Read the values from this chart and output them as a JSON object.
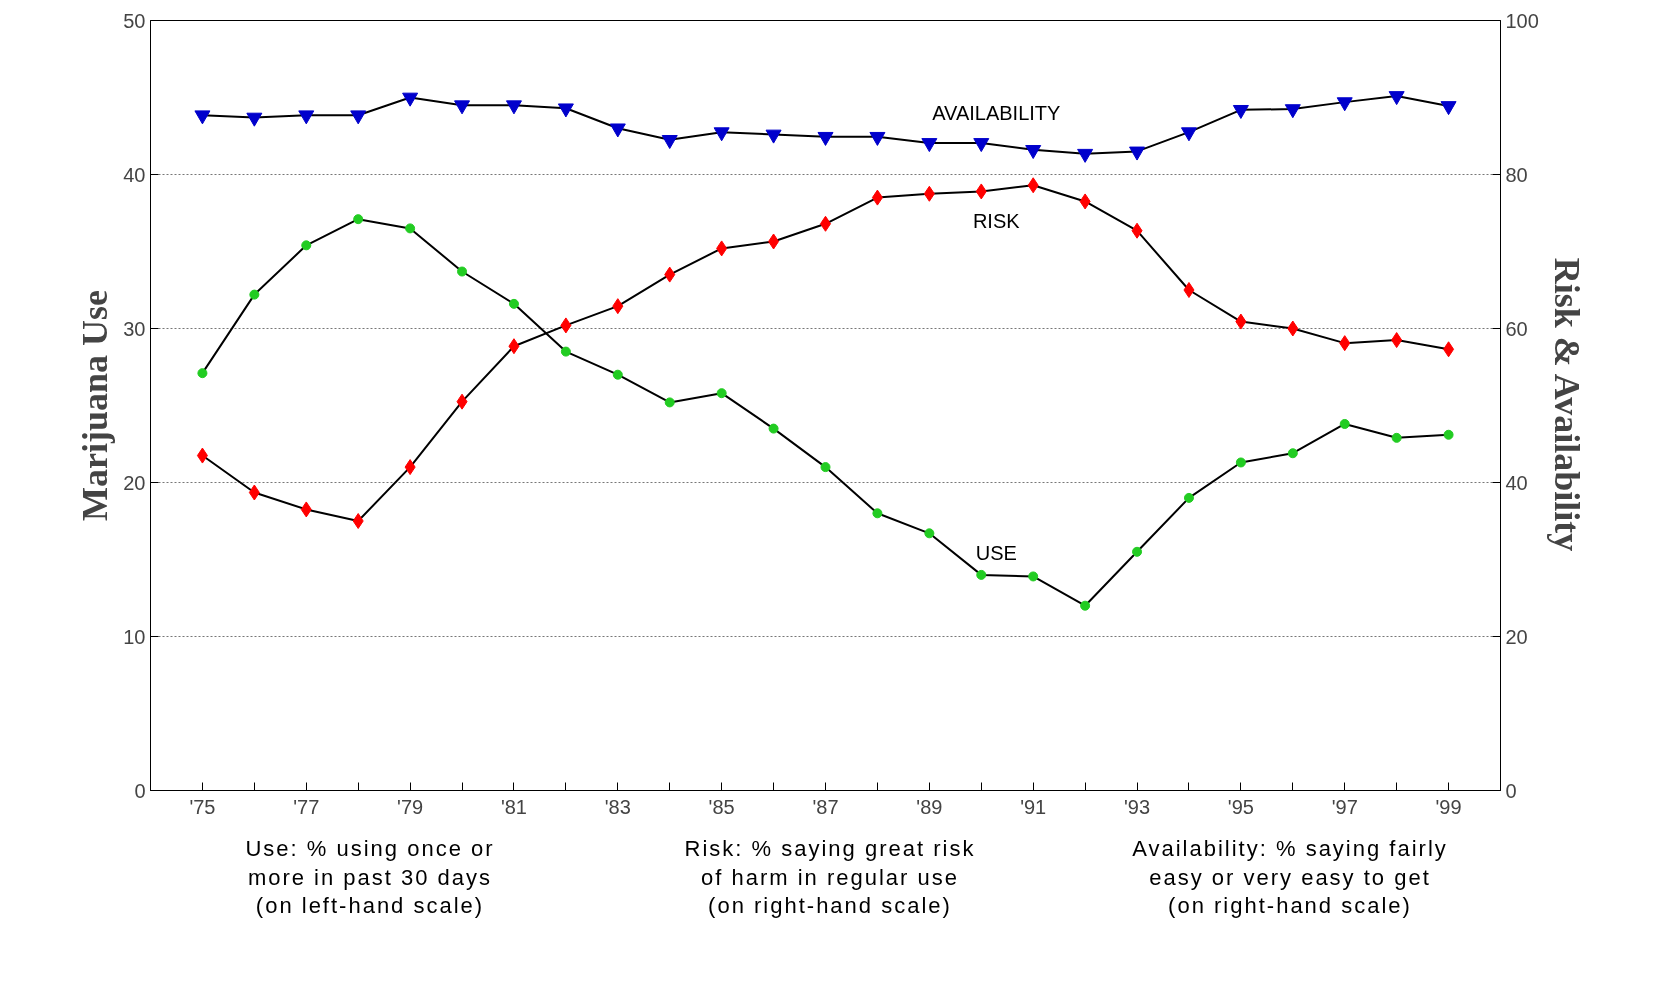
{
  "chart_data": {
    "type": "line",
    "x": [
      1975,
      1976,
      1977,
      1978,
      1979,
      1980,
      1981,
      1982,
      1983,
      1984,
      1985,
      1986,
      1987,
      1988,
      1989,
      1990,
      1991,
      1992,
      1993,
      1994,
      1995,
      1996,
      1997,
      1998,
      1999
    ],
    "series": [
      {
        "name": "USE",
        "color": "#22cc22",
        "marker": "circle",
        "values": [
          27.1,
          32.2,
          35.4,
          37.1,
          36.5,
          33.7,
          31.6,
          28.5,
          27.0,
          25.2,
          25.8,
          23.5,
          21.0,
          18.0,
          16.7,
          14.0,
          13.9,
          12.0,
          15.5,
          19.0,
          21.3,
          21.9,
          23.8,
          22.9,
          23.1
        ]
      },
      {
        "name": "RISK",
        "color": "#ff0000",
        "marker": "diamond",
        "axis": "y2",
        "values": [
          43.5,
          38.7,
          36.5,
          35.0,
          42.0,
          50.5,
          57.7,
          60.4,
          62.9,
          67.0,
          70.4,
          71.3,
          73.6,
          77.0,
          77.5,
          77.8,
          78.6,
          76.5,
          72.7,
          65.0,
          60.9,
          60.0,
          58.1,
          58.5,
          57.3
        ]
      },
      {
        "name": "AVAILABILITY",
        "color": "#0000cc",
        "marker": "triangle",
        "axis": "y2",
        "values": [
          87.7,
          87.4,
          87.7,
          87.7,
          90.0,
          89.0,
          89.0,
          88.6,
          86.0,
          84.5,
          85.5,
          85.2,
          84.9,
          84.9,
          84.1,
          84.1,
          83.2,
          82.7,
          83.0,
          85.5,
          88.4,
          88.5,
          89.4,
          90.2,
          88.9
        ]
      }
    ],
    "ylabel": "Marijuana Use",
    "y2label": "Risk & Availability",
    "xlim": [
      1974,
      2000
    ],
    "xticks": [
      {
        "value": 1975,
        "label": "'75"
      },
      {
        "value": 1976,
        "label": null
      },
      {
        "value": 1977,
        "label": "'77"
      },
      {
        "value": 1978,
        "label": null
      },
      {
        "value": 1979,
        "label": "'79"
      },
      {
        "value": 1980,
        "label": null
      },
      {
        "value": 1981,
        "label": "'81"
      },
      {
        "value": 1982,
        "label": null
      },
      {
        "value": 1983,
        "label": "'83"
      },
      {
        "value": 1984,
        "label": null
      },
      {
        "value": 1985,
        "label": "'85"
      },
      {
        "value": 1986,
        "label": null
      },
      {
        "value": 1987,
        "label": "'87"
      },
      {
        "value": 1988,
        "label": null
      },
      {
        "value": 1989,
        "label": "'89"
      },
      {
        "value": 1990,
        "label": null
      },
      {
        "value": 1991,
        "label": "'91"
      },
      {
        "value": 1992,
        "label": null
      },
      {
        "value": 1993,
        "label": "'93"
      },
      {
        "value": 1994,
        "label": null
      },
      {
        "value": 1995,
        "label": "'95"
      },
      {
        "value": 1996,
        "label": null
      },
      {
        "value": 1997,
        "label": "'97"
      },
      {
        "value": 1998,
        "label": null
      },
      {
        "value": 1999,
        "label": "'99"
      }
    ],
    "ylim": [
      0,
      50
    ],
    "yticks": [
      0,
      10,
      20,
      30,
      40,
      50
    ],
    "y2lim": [
      0,
      100
    ],
    "y2ticks": [
      0,
      20,
      40,
      60,
      80,
      100
    ],
    "grid": "y",
    "annotations": [
      "Use:  % using once or\nmore in past 30 days\n(on left-hand scale)",
      "Risk:  % saying great risk\nof harm in regular use\n(on right-hand scale)",
      "Availability:  % saying fairly\neasy or very easy to get\n(on right-hand scale)"
    ]
  }
}
